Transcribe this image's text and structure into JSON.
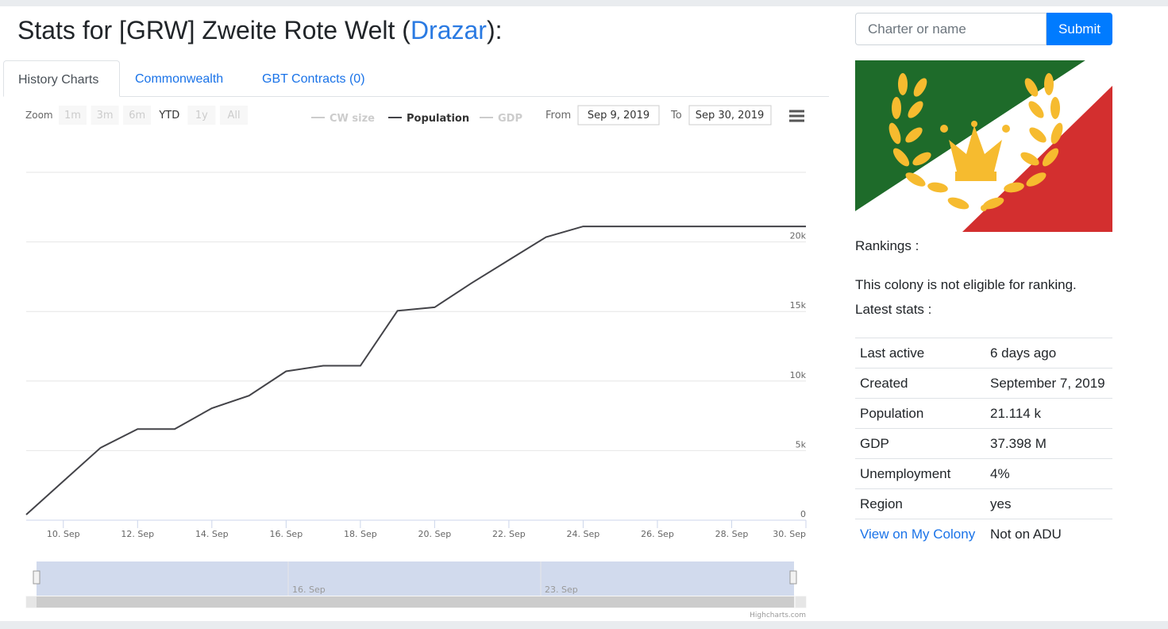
{
  "header": {
    "title_prefix": "Stats for [GRW] Zweite Rote Welt (",
    "owner": "Drazar",
    "title_suffix": "):"
  },
  "tabs": [
    "History Charts",
    "Commonwealth",
    "GBT Contracts (0)"
  ],
  "chart_data": {
    "type": "line",
    "zoom_label": "Zoom",
    "range_buttons": [
      "1m",
      "3m",
      "6m",
      "YTD",
      "1y",
      "All"
    ],
    "range_selected": 3,
    "from_label": "From",
    "from_value": "Sep 9, 2019",
    "to_label": "To",
    "to_value": "Sep 30, 2019",
    "categories": [
      null,
      "10. Sep",
      null,
      "12. Sep",
      null,
      "14. Sep",
      null,
      "16. Sep",
      null,
      "18. Sep",
      null,
      "20. Sep",
      null,
      "22. Sep",
      null,
      "24. Sep",
      null,
      "26. Sep",
      null,
      "28. Sep",
      null,
      "30. Sep"
    ],
    "series": [
      {
        "name": "CW size",
        "color": "#cccccc",
        "visible": false
      },
      {
        "name": "Population",
        "color": "#434348",
        "visible": true,
        "values": [
          400,
          2800,
          5200,
          6550,
          6550,
          8050,
          8950,
          10700,
          11100,
          11100,
          15050,
          15300,
          17050,
          18700,
          20350,
          21114,
          21114,
          21114,
          21114,
          21114,
          21114,
          21114
        ]
      },
      {
        "name": "GDP",
        "color": "#cccccc",
        "visible": false
      }
    ],
    "ylim": [
      0,
      25000
    ],
    "yticks": [
      0,
      {
        "value": 5000,
        "label": "5k"
      },
      {
        "value": 10000,
        "label": "10k"
      },
      {
        "value": 15000,
        "label": "15k"
      },
      {
        "value": 20000,
        "label": "20k"
      }
    ],
    "grid": true,
    "navigator_labels": [
      "16. Sep",
      "23. Sep"
    ],
    "credits": "Highcharts.com"
  },
  "search": {
    "placeholder": "Charter or name",
    "button": "Submit"
  },
  "rankings_label": "Rankings :",
  "ranking_note": "This colony is not eligible for ranking.",
  "latest_label": "Latest stats :",
  "stats": {
    "rows": [
      [
        "Last active",
        "6 days ago"
      ],
      [
        "Created",
        "September 7, 2019"
      ],
      [
        "Population",
        "21.114 k"
      ],
      [
        "GDP",
        "37.398 M"
      ],
      [
        "Unemployment",
        "4%"
      ],
      [
        "Region",
        "yes"
      ],
      [
        "View on My Colony",
        "Not on ADU"
      ]
    ]
  }
}
